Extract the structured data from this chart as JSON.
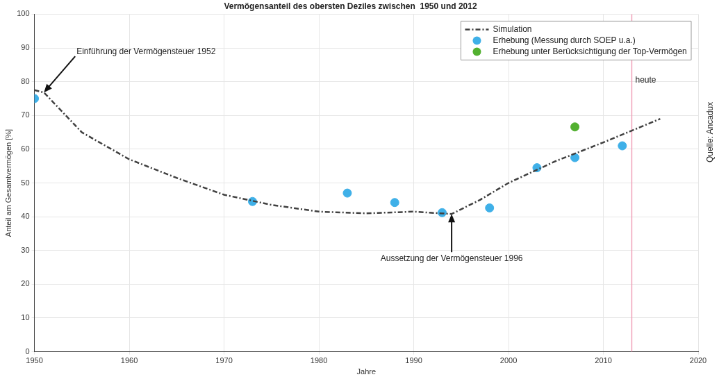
{
  "chart_data": {
    "type": "line",
    "title": "Vermögensanteil des obersten Deziles zwischen  1950 und 2012",
    "xlabel": "Jahre",
    "ylabel": "Anteil am Gesamtvermögen [%]",
    "xlim": [
      1950,
      2020
    ],
    "xticks": [
      1950,
      1960,
      1970,
      1980,
      1990,
      2000,
      2010,
      2020
    ],
    "ylim": [
      0,
      100
    ],
    "yticks": [
      0,
      10,
      20,
      30,
      40,
      50,
      60,
      70,
      80,
      90,
      100
    ],
    "grid": true,
    "legend": "top right",
    "series": [
      {
        "name": "Simulation",
        "type": "line",
        "color": "#404040",
        "line_style": "dashed",
        "marker": "none",
        "x": [
          1950,
          1951,
          1955,
          1960,
          1965,
          1970,
          1975,
          1980,
          1985,
          1990,
          1994,
          1997,
          2000,
          2005,
          2010,
          2013,
          2016
        ],
        "values": [
          77.5,
          76.8,
          65,
          57,
          51.5,
          46.5,
          43.5,
          41.5,
          41,
          41.5,
          40.8,
          45,
          50,
          56.5,
          62,
          65.5,
          69
        ]
      },
      {
        "name": "Erhebung (Messung durch SOEP u.a.)",
        "type": "scatter",
        "color": "#3fb0e8",
        "marker": "circle",
        "x": [
          1950,
          1973,
          1983,
          1988,
          1993,
          1998,
          2003,
          2007,
          2012
        ],
        "values": [
          75,
          44.5,
          47,
          44.2,
          41.2,
          42.6,
          54.5,
          57.5,
          61
        ]
      },
      {
        "name": "Erhebung unter Berücksichtigung der Top-Vermögen",
        "type": "scatter",
        "color": "#52b030",
        "marker": "circle",
        "x": [
          2007
        ],
        "values": [
          66.6
        ]
      }
    ],
    "ref_lines": [
      {
        "axis": "x",
        "value": 2013,
        "label": "heute",
        "color": "#f0a0b8"
      }
    ],
    "annotations": [
      {
        "text": "Einführung der Vermögensteuer 1952",
        "x": 1951,
        "y": 76.8
      },
      {
        "text": "Aussetzung der Vermögensteuer 1996",
        "x": 1994,
        "y": 40.8
      },
      "Quelle: Ancadux"
    ]
  }
}
